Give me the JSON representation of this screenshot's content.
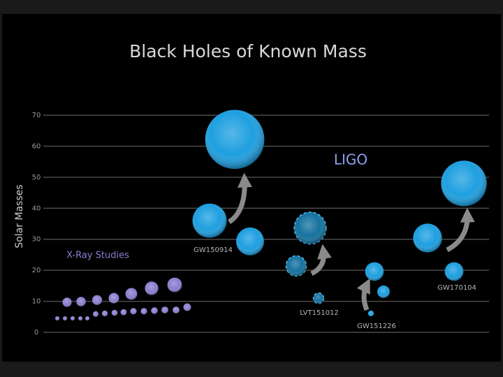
{
  "chart_data": {
    "type": "scatter",
    "title": "Black Holes of Known Mass",
    "y_label": "Solar Masses",
    "annotations": [
      "LIGO"
    ],
    "ylim": [
      0,
      70
    ],
    "yticks": [
      0,
      10,
      20,
      30,
      40,
      50,
      60,
      70
    ],
    "grid": true,
    "series": [
      {
        "name": "X-Ray Studies",
        "color": "#8c7fd0",
        "values": [
          9.7,
          9.9,
          10.4,
          11.0,
          12.4,
          14.2,
          15.3,
          4.5,
          4.5,
          4.5,
          4.5,
          4.5,
          5.9,
          6.1,
          6.3,
          6.5,
          6.8,
          6.8,
          7.0,
          7.2,
          7.2,
          8.1
        ]
      },
      {
        "name": "GW150914",
        "color": "#1e9fe0",
        "values": [
          36.0,
          29.3,
          62.2
        ]
      },
      {
        "name": "LVT151012",
        "color": "#15729f",
        "dashed": true,
        "values": [
          21.4,
          11.0,
          33.6
        ]
      },
      {
        "name": "GW151226",
        "color": "#1e9fe0",
        "values": [
          6.1,
          13.1,
          19.6
        ]
      },
      {
        "name": "GW170104",
        "color": "#1e9fe0",
        "values": [
          30.4,
          19.6,
          48.0
        ]
      }
    ]
  }
}
